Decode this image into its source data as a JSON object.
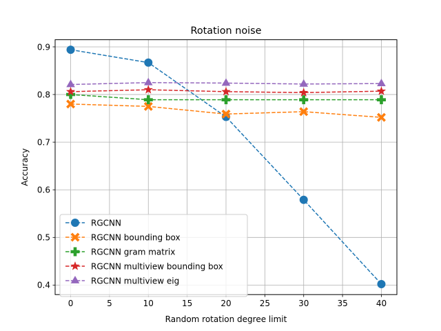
{
  "chart_data": {
    "type": "line",
    "title": "Rotation noise",
    "xlabel": "Random rotation degree limit",
    "ylabel": "Accuracy",
    "xlim": [
      -2,
      42
    ],
    "ylim": [
      0.38,
      0.915
    ],
    "xticks": [
      0,
      5,
      10,
      15,
      20,
      25,
      30,
      35,
      40
    ],
    "yticks": [
      0.4,
      0.5,
      0.6,
      0.7,
      0.8,
      0.9
    ],
    "xtick_labels": [
      "0",
      "5",
      "10",
      "15",
      "20",
      "25",
      "30",
      "35",
      "40"
    ],
    "ytick_labels": [
      "0.4",
      "0.5",
      "0.6",
      "0.7",
      "0.8",
      "0.9"
    ],
    "grid": true,
    "legend_position": "lower-left",
    "x": [
      0,
      10,
      20,
      30,
      40
    ],
    "series": [
      {
        "name": "RGCNN",
        "values": [
          0.894,
          0.867,
          0.753,
          0.579,
          0.402
        ],
        "color": "#1f77b4",
        "marker": "circle"
      },
      {
        "name": "RGCNN bounding box",
        "values": [
          0.78,
          0.775,
          0.759,
          0.764,
          0.752
        ],
        "color": "#ff7f0e",
        "marker": "x-filled"
      },
      {
        "name": "RGCNN gram matrix",
        "values": [
          0.8,
          0.789,
          0.789,
          0.789,
          0.789
        ],
        "color": "#2ca02c",
        "marker": "plus-filled"
      },
      {
        "name": "RGCNN multiview bounding box",
        "values": [
          0.806,
          0.81,
          0.806,
          0.804,
          0.807
        ],
        "color": "#d62728",
        "marker": "star"
      },
      {
        "name": "RGCNN multiview eig",
        "values": [
          0.821,
          0.825,
          0.824,
          0.822,
          0.823
        ],
        "color": "#9467bd",
        "marker": "triangle"
      }
    ]
  }
}
